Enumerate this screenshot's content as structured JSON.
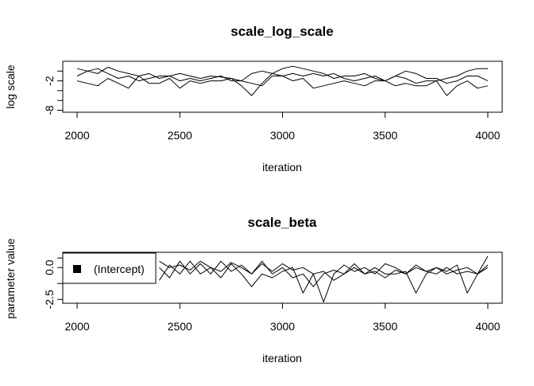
{
  "chart_data": [
    {
      "type": "line",
      "title": "scale_log_scale",
      "xlabel": "iteration",
      "ylabel": "log scale",
      "xlim": [
        1930,
        4070
      ],
      "ylim": [
        -8.4,
        2.0
      ],
      "x_ticks": [
        2000,
        2500,
        3000,
        3500,
        4000
      ],
      "x_tick_labels": [
        "2000",
        "2500",
        "3000",
        "3500",
        "4000"
      ],
      "y_ticks": [
        -8,
        -6,
        -4,
        -2,
        0
      ],
      "y_tick_labels": [
        "-8",
        "",
        "",
        "-2",
        ""
      ],
      "x": [
        2000,
        2050,
        2100,
        2150,
        2200,
        2250,
        2300,
        2350,
        2400,
        2450,
        2500,
        2550,
        2600,
        2650,
        2700,
        2750,
        2800,
        2850,
        2900,
        2950,
        3000,
        3050,
        3100,
        3150,
        3200,
        3250,
        3300,
        3350,
        3400,
        3450,
        3500,
        3550,
        3600,
        3650,
        3700,
        3750,
        3800,
        3850,
        3900,
        3950,
        4000
      ],
      "series": [
        {
          "values": [
            0.5,
            0.0,
            -0.5,
            0.8,
            0.0,
            -0.5,
            -1.0,
            -0.5,
            -1.5,
            -1.0,
            -0.5,
            -1.0,
            -1.5,
            -1.0,
            -1.2,
            -1.5,
            -3.0,
            -5.0,
            -2.5,
            -0.5,
            0.5,
            1.0,
            0.5,
            0.0,
            -0.5,
            -1.5,
            -1.0,
            -1.0,
            -0.5,
            -1.5,
            -2.0,
            -1.0,
            -1.5,
            -2.5,
            -2.0,
            -2.0,
            -1.5,
            -1.0,
            0.0,
            0.5,
            0.5
          ]
        },
        {
          "values": [
            -1.0,
            0.0,
            0.5,
            -0.5,
            -1.5,
            -1.0,
            -2.0,
            -1.5,
            -1.0,
            -1.0,
            -2.0,
            -1.5,
            -2.0,
            -1.5,
            -1.0,
            -2.0,
            -2.0,
            -0.5,
            0.0,
            -0.5,
            -1.0,
            -0.5,
            -1.0,
            -0.5,
            -1.0,
            -0.5,
            -1.5,
            -2.0,
            -1.5,
            -1.0,
            -2.0,
            -1.0,
            0.0,
            -0.5,
            -1.5,
            -1.5,
            -2.5,
            -2.0,
            -1.0,
            -1.0,
            -2.0
          ]
        },
        {
          "values": [
            -2.0,
            -2.5,
            -3.0,
            -1.5,
            -2.5,
            -3.5,
            -1.0,
            -2.5,
            -2.5,
            -1.5,
            -3.5,
            -2.0,
            -2.5,
            -2.0,
            -2.0,
            -1.5,
            -2.0,
            -2.5,
            -3.0,
            -1.0,
            -1.0,
            -2.0,
            -1.5,
            -3.5,
            -3.0,
            -2.5,
            -2.0,
            -2.5,
            -3.0,
            -2.0,
            -2.0,
            -3.0,
            -2.5,
            -3.0,
            -3.0,
            -2.0,
            -5.0,
            -3.0,
            -2.0,
            -3.5,
            -3.0
          ]
        }
      ]
    },
    {
      "type": "line",
      "title": "scale_beta",
      "xlabel": "iteration",
      "ylabel": "parameter value",
      "xlim": [
        1930,
        4070
      ],
      "ylim": [
        -2.8,
        1.2
      ],
      "x_ticks": [
        2000,
        2500,
        3000,
        3500,
        4000
      ],
      "x_tick_labels": [
        "2000",
        "2500",
        "3000",
        "3500",
        "4000"
      ],
      "y_ticks": [
        -2.5,
        -1.25,
        0.0,
        0.75
      ],
      "y_tick_labels": [
        "-2.5",
        "",
        "0.0",
        ""
      ],
      "legend": {
        "position": "top-left",
        "entries": [
          "(Intercept)"
        ]
      },
      "x": [
        2400,
        2450,
        2500,
        2550,
        2600,
        2650,
        2700,
        2750,
        2800,
        2850,
        2900,
        2950,
        3000,
        3050,
        3100,
        3150,
        3200,
        3250,
        3300,
        3350,
        3400,
        3450,
        3500,
        3550,
        3600,
        3650,
        3700,
        3750,
        3800,
        3850,
        3900,
        3950,
        4000
      ],
      "series": [
        {
          "values": [
            0.0,
            -0.8,
            0.5,
            -0.5,
            0.3,
            -0.5,
            0.5,
            -0.3,
            0.2,
            -0.5,
            0.3,
            -0.3,
            0.3,
            -0.2,
            0.0,
            -0.5,
            -2.7,
            -0.5,
            0.2,
            -0.3,
            0.0,
            -0.5,
            0.3,
            0.0,
            -0.5,
            0.2,
            -0.3,
            0.0,
            -0.5,
            -0.2,
            0.0,
            -0.5,
            0.9
          ]
        },
        {
          "values": [
            -1.0,
            0.2,
            -0.5,
            0.5,
            -0.5,
            0.0,
            -0.8,
            0.3,
            -0.5,
            -1.5,
            -0.5,
            -0.8,
            -0.3,
            0.0,
            -2.0,
            -0.5,
            -0.3,
            -1.0,
            -0.5,
            0.0,
            -0.5,
            -0.3,
            -0.8,
            -0.2,
            -0.5,
            0.0,
            -0.3,
            -0.5,
            0.0,
            -0.5,
            -0.3,
            -0.5,
            0.2
          ]
        },
        {
          "values": [
            0.5,
            0.0,
            0.2,
            -0.2,
            0.5,
            0.0,
            -0.3,
            0.4,
            0.0,
            -0.5,
            0.5,
            -0.5,
            0.0,
            -0.8,
            -0.5,
            -1.5,
            -0.5,
            -0.2,
            -0.5,
            0.3,
            -0.5,
            0.0,
            -0.5,
            -0.5,
            -0.3,
            -2.0,
            -0.5,
            0.0,
            -0.3,
            0.2,
            -2.0,
            -0.5,
            0.0
          ]
        }
      ]
    }
  ]
}
